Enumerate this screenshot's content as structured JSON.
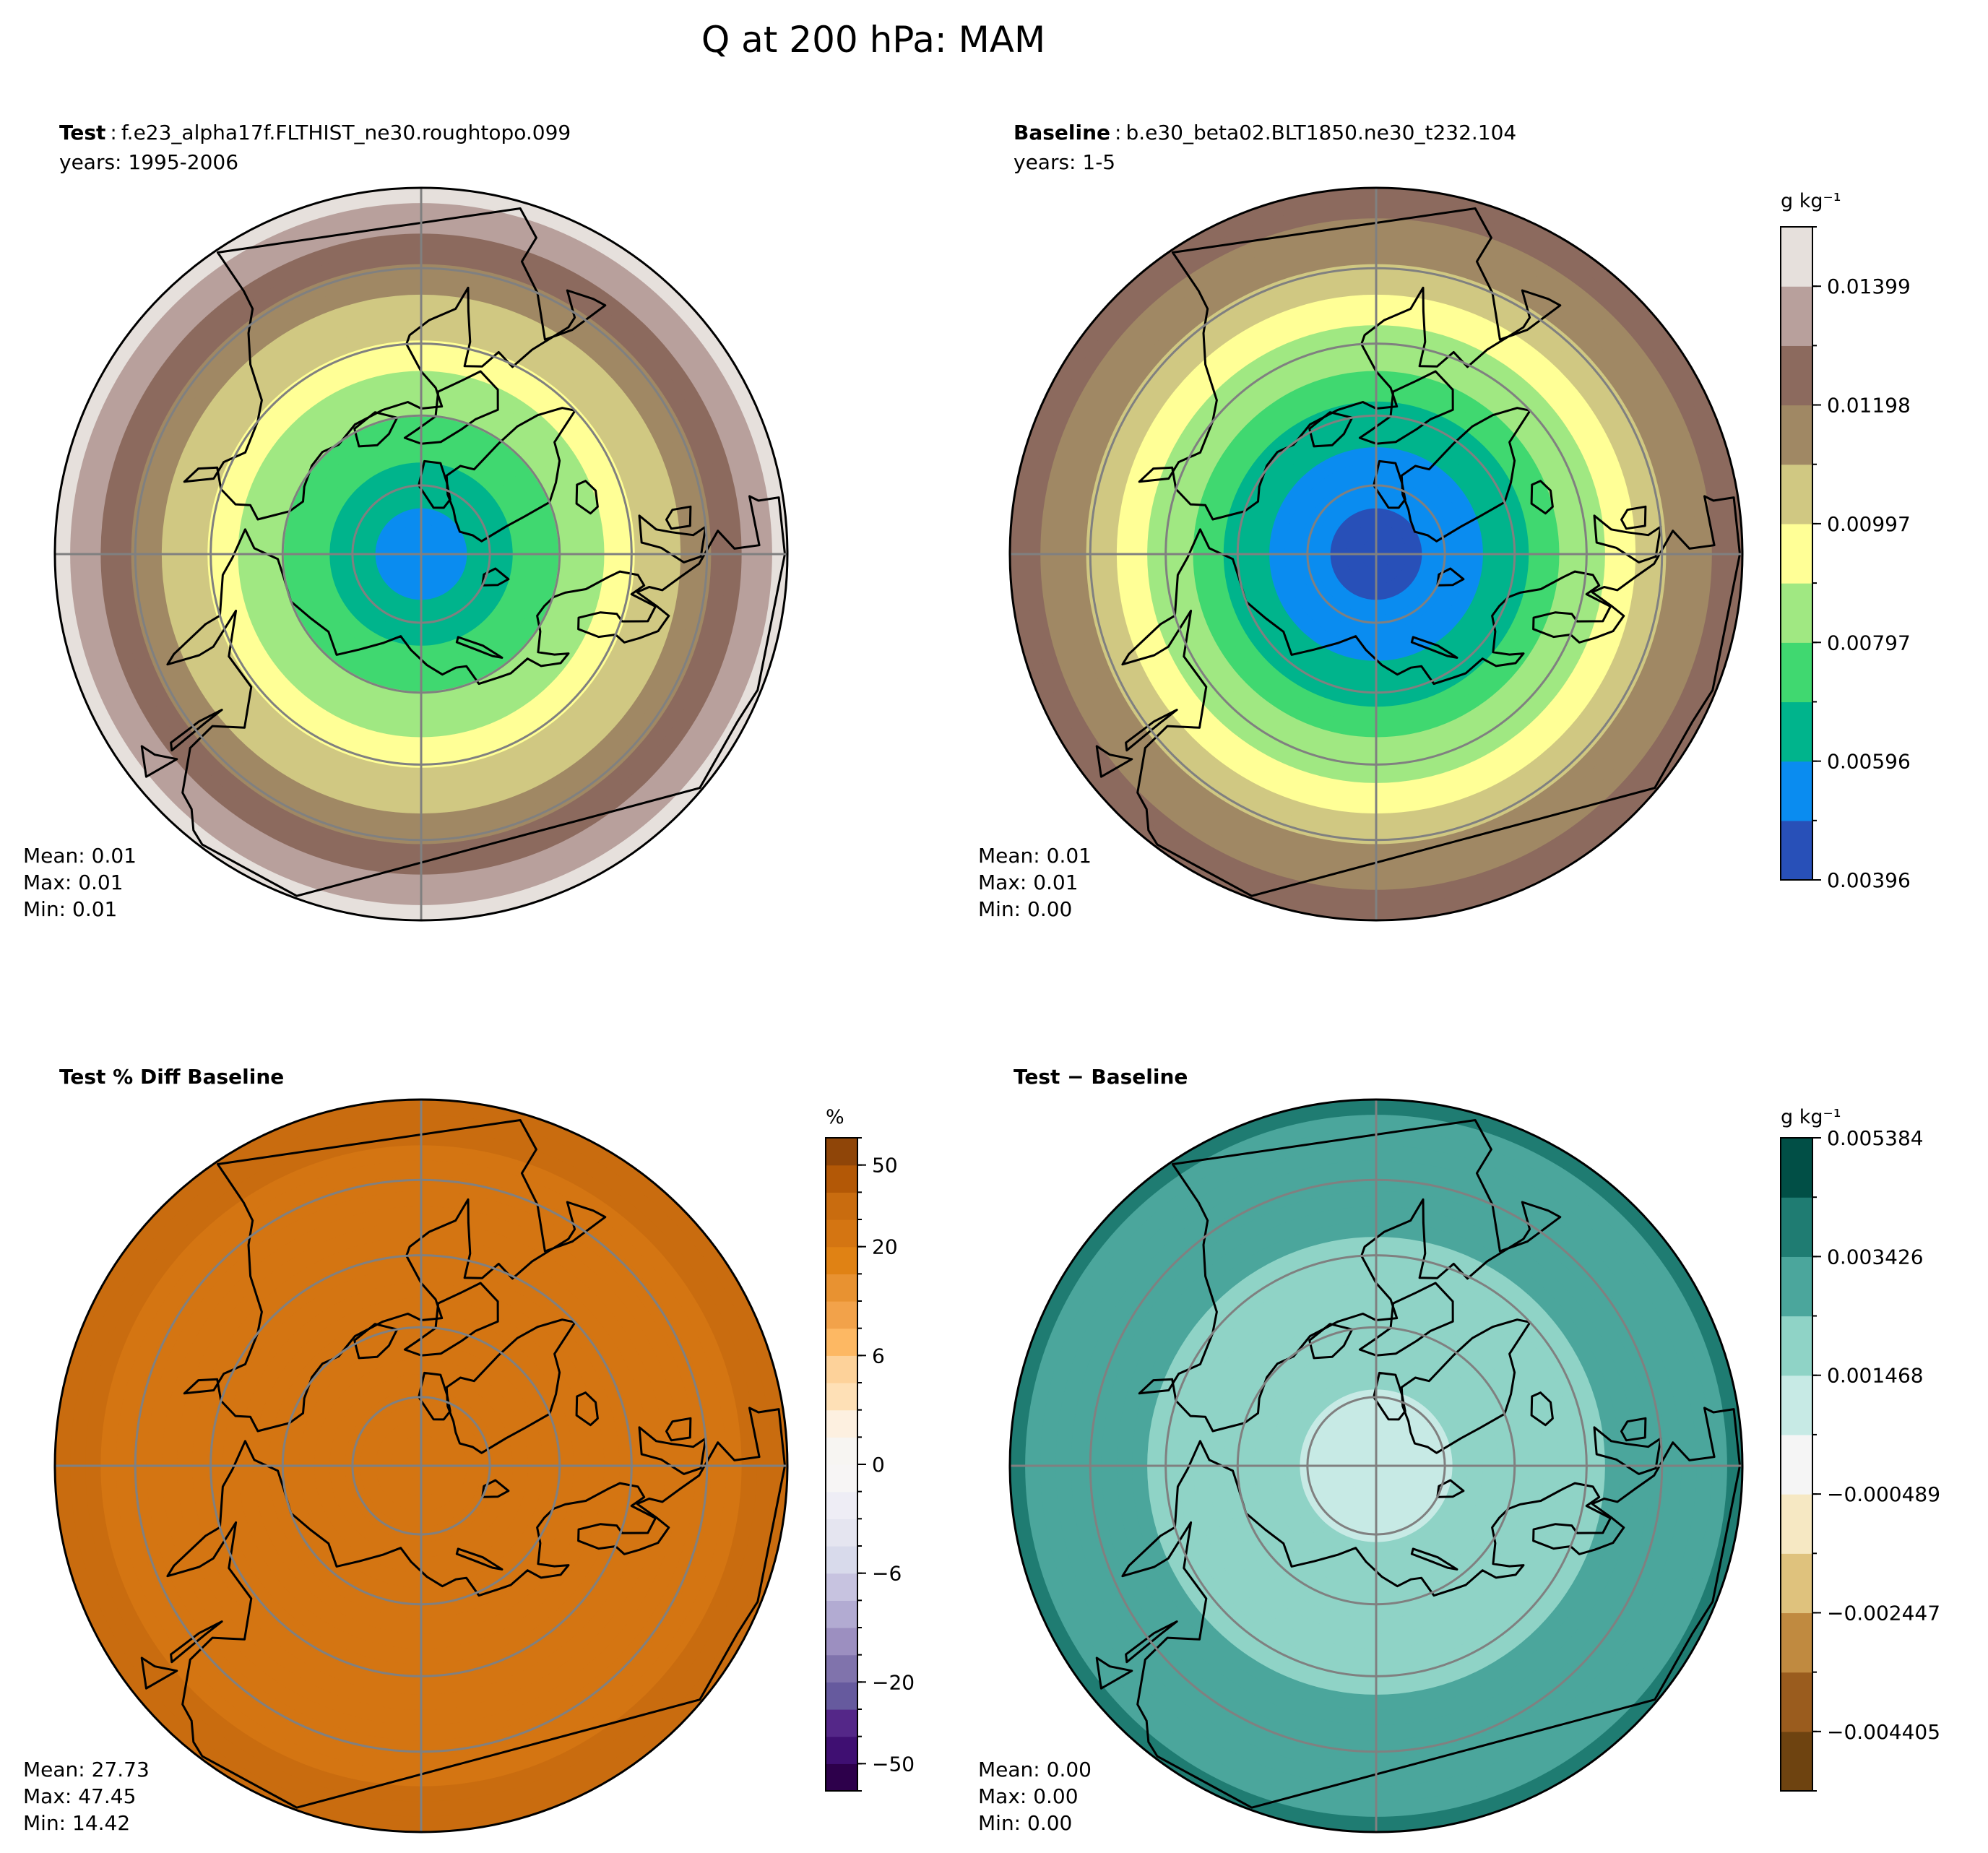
{
  "chart_data": {
    "type": "polar-contour-map",
    "title": "Q at 200 hPa: MAM",
    "panels": [
      {
        "id": "test",
        "title_bold": "Test",
        "title_sep": ":",
        "title_text": "f.e23_alpha17f.FLTHIST_ne30.roughtopo.099",
        "subtitle": "years: 1995-2006",
        "stats": {
          "mean": "Mean:  0.01",
          "max": "Max:  0.01",
          "min": "Min:  0.01"
        },
        "levels": [
          0.00396,
          0.00496,
          0.00596,
          0.00697,
          0.00797,
          0.00897,
          0.00997,
          0.01098,
          0.01198,
          0.01298,
          0.01399,
          0.01499
        ],
        "colors": [
          "#2850b8",
          "#0a8cf0",
          "#00b48c",
          "#40d870",
          "#a0e882",
          "#ffff96",
          "#d0c882",
          "#a08864",
          "#8c6a5e",
          "#b8a09c",
          "#e6e0dc"
        ],
        "field": {
          "kind": "lat-band",
          "pole_value": 0.0052,
          "edge_value": 0.0142
        }
      },
      {
        "id": "baseline",
        "title_bold": "Baseline",
        "title_sep": ":",
        "title_text": "b.e30_beta02.BLT1850.ne30_t232.104",
        "subtitle": "years: 1-5",
        "stats": {
          "mean": "Mean:  0.01",
          "max": "Max:  0.01",
          "min": "Min:  0.00"
        },
        "colorbar": {
          "unit": "g kg⁻¹",
          "levels": [
            0.00396,
            0.00496,
            0.00596,
            0.00697,
            0.00797,
            0.00897,
            0.00997,
            0.01098,
            0.01198,
            0.01298,
            0.01399,
            0.01499
          ],
          "tick_values": [
            0.00396,
            0.00596,
            0.00797,
            0.00997,
            0.01198,
            0.01399
          ],
          "tick_labels": [
            "0.00396",
            "0.00596",
            "0.00797",
            "0.00997",
            "0.01198",
            "0.01399"
          ],
          "colors": [
            "#2850b8",
            "#0a8cf0",
            "#00b48c",
            "#40d870",
            "#a0e882",
            "#ffff96",
            "#d0c882",
            "#a08864",
            "#8c6a5e",
            "#b8a09c",
            "#e6e0dc"
          ]
        },
        "field": {
          "kind": "lat-band",
          "pole_value": 0.0042,
          "edge_value": 0.0128
        }
      },
      {
        "id": "pctdiff",
        "title_bold": "Test % Diff Baseline",
        "stats": {
          "mean": "Mean: 27.73",
          "max": "Max: 47.45",
          "min": "Min: 14.42"
        },
        "colorbar": {
          "unit": "%",
          "levels": [
            -75,
            -50,
            -40,
            -30,
            -20,
            -15,
            -10,
            -8,
            -6,
            -4,
            -2,
            -1,
            0,
            1,
            2,
            4,
            6,
            8,
            10,
            15,
            20,
            30,
            40,
            50,
            75
          ],
          "tick_values": [
            -50,
            -20,
            -6,
            0,
            6,
            20,
            50
          ],
          "tick_labels": [
            "−50",
            "−20",
            "−6",
            "0",
            "6",
            "20",
            "50"
          ],
          "colors": [
            "#2d004b",
            "#3f0f72",
            "#542788",
            "#665a9e",
            "#8073ac",
            "#9c8fc0",
            "#b2abd2",
            "#c7c3e0",
            "#d8daeb",
            "#e5e5f0",
            "#eeedf5",
            "#f7f5f5",
            "#f7f5f2",
            "#fdf0e0",
            "#fee0b6",
            "#fdd29a",
            "#fdb863",
            "#f2a24a",
            "#e89231",
            "#e08214",
            "#d47512",
            "#c96c0f",
            "#b35806",
            "#8f4508"
          ]
        },
        "field": {
          "kind": "lat-band",
          "pole_value": 24,
          "edge_value": 31
        }
      },
      {
        "id": "absdiff",
        "title_bold": "Test − Baseline",
        "stats": {
          "mean": "Mean:  0.00",
          "max": "Max:  0.00",
          "min": "Min:  0.00"
        },
        "colorbar": {
          "unit": "g kg⁻¹",
          "levels": [
            -0.005384,
            -0.004405,
            -0.003426,
            -0.002447,
            -0.001468,
            -0.000489,
            0.000489,
            0.001468,
            0.002447,
            0.003426,
            0.004405,
            0.005384
          ],
          "tick_values": [
            -0.004405,
            -0.002447,
            -0.000489,
            0.001468,
            0.003426,
            0.005384
          ],
          "tick_labels": [
            "−0.004405",
            "−0.002447",
            "−0.000489",
            "0.001468",
            "0.003426",
            "0.005384"
          ],
          "colors": [
            "#6e4310",
            "#9a5c1e",
            "#c08a40",
            "#dfc27d",
            "#f6e8c3",
            "#f5f5f5",
            "#c7eae5",
            "#8fd3c6",
            "#4ba69c",
            "#1f7c72",
            "#014f46"
          ]
        },
        "field": {
          "kind": "lat-band",
          "pole_value": 0.0011,
          "edge_value": 0.0035
        }
      }
    ],
    "map": {
      "projection": "north-polar-stereographic",
      "lat_circles_deg": [
        80,
        70,
        60,
        50
      ],
      "meridians_deg": [
        0,
        90,
        180,
        270
      ],
      "boundary_lat_deg": 40,
      "land_outline": "coastlines"
    }
  }
}
